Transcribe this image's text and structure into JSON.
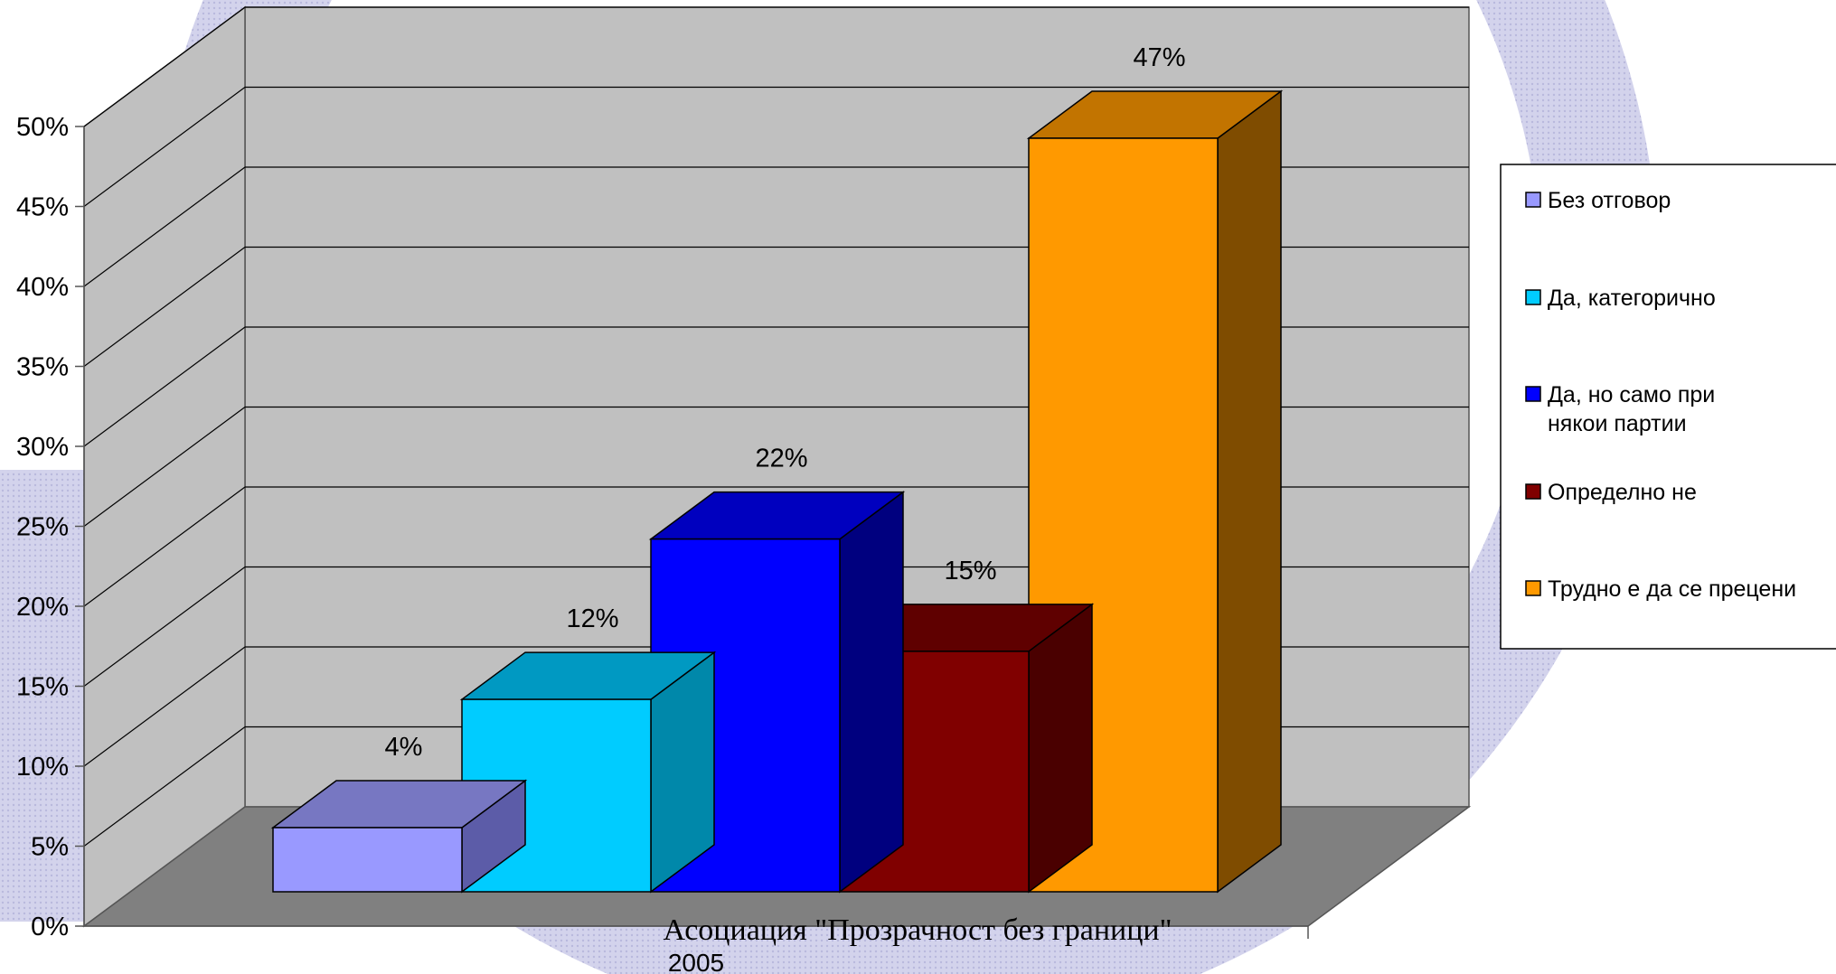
{
  "chart_data": {
    "type": "bar",
    "title": "",
    "xlabel": "",
    "ylabel": "",
    "ylim": [
      0,
      50
    ],
    "ytick_step": 5,
    "ytick_suffix": "%",
    "grid": true,
    "view": "3d",
    "categories": [
      "2005"
    ],
    "series": [
      {
        "name": "Без отговор",
        "value": 4,
        "label": "4%",
        "color": "#9999FF",
        "top_color": "#7777C2",
        "side_color": "#5C5CA8"
      },
      {
        "name": "Да, категорично",
        "value": 12,
        "label": "12%",
        "color": "#00CCFF",
        "top_color": "#0099C2",
        "side_color": "#0088AA"
      },
      {
        "name": "Да, но само при някои партии",
        "value": 22,
        "label": "22%",
        "color": "#0000FF",
        "top_color": "#0000BF",
        "side_color": "#00007F"
      },
      {
        "name": "Определно не",
        "value": 15,
        "label": "15%",
        "color": "#800000",
        "top_color": "#5F0000",
        "side_color": "#4A0000"
      },
      {
        "name": "Трудно е да се прецени",
        "value": 47,
        "label": "47%",
        "color": "#FF9900",
        "top_color": "#C27400",
        "side_color": "#7F4C00"
      }
    ],
    "legend_position": "right",
    "source_text": "Асоциация \"Прозрачност без граници\"",
    "category_label": "2005"
  },
  "colors": {
    "back_wall": "#C0C0C0",
    "side_wall": "#C0C0C0",
    "floor": "#808080",
    "watermark": "#C9C9E6"
  }
}
